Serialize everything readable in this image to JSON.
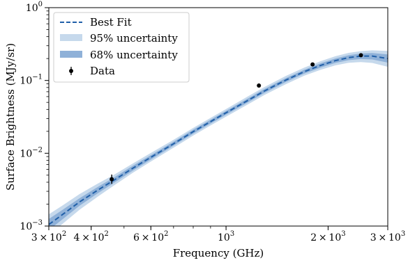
{
  "chart_data": {
    "type": "line",
    "xscale": "log",
    "yscale": "log",
    "xlim": [
      300,
      3000
    ],
    "ylim": [
      0.001,
      1
    ],
    "xlabel": "Frequency (GHz)",
    "ylabel": "Surface Brightness (MJy/sr)",
    "grid": false,
    "legend_position": "top-left",
    "x_ticks": [
      {
        "value": 300,
        "mantissa": "3",
        "times": "×",
        "base": "10",
        "exp": "2"
      },
      {
        "value": 400,
        "mantissa": "4",
        "times": "×",
        "base": "10",
        "exp": "2"
      },
      {
        "value": 600,
        "mantissa": "6",
        "times": "×",
        "base": "10",
        "exp": "2"
      },
      {
        "value": 1000,
        "mantissa": "",
        "times": "",
        "base": "10",
        "exp": "3"
      },
      {
        "value": 2000,
        "mantissa": "2",
        "times": "×",
        "base": "10",
        "exp": "3"
      },
      {
        "value": 3000,
        "mantissa": "3",
        "times": "×",
        "base": "10",
        "exp": "3"
      }
    ],
    "y_ticks": [
      {
        "value": 0.001,
        "base": "10",
        "exp": "−3"
      },
      {
        "value": 0.01,
        "base": "10",
        "exp": "−2"
      },
      {
        "value": 0.1,
        "base": "10",
        "exp": "−1"
      },
      {
        "value": 1,
        "base": "10",
        "exp": "0"
      }
    ],
    "best_fit": {
      "name": "Best Fit",
      "color": "#1f5fa8",
      "x": [
        300,
        330,
        370,
        420,
        470,
        530,
        600,
        700,
        800,
        900,
        1000,
        1150,
        1300,
        1500,
        1700,
        1900,
        2100,
        2300,
        2500,
        2700,
        3000
      ],
      "y": [
        0.00105,
        0.00145,
        0.00215,
        0.00315,
        0.00435,
        0.0062,
        0.0088,
        0.0135,
        0.0198,
        0.0272,
        0.036,
        0.052,
        0.072,
        0.101,
        0.132,
        0.161,
        0.187,
        0.206,
        0.216,
        0.216,
        0.2
      ]
    },
    "band_95": {
      "name": "95% uncertainty",
      "color": "#c6d9ec",
      "lower": [
        0.00074,
        0.00108,
        0.00168,
        0.00257,
        0.00368,
        0.00536,
        0.0077,
        0.0119,
        0.0175,
        0.0241,
        0.0318,
        0.0458,
        0.0634,
        0.0888,
        0.116,
        0.14,
        0.161,
        0.175,
        0.179,
        0.174,
        0.154
      ],
      "upper": [
        0.00145,
        0.00193,
        0.00276,
        0.00387,
        0.00515,
        0.0072,
        0.0101,
        0.0153,
        0.0223,
        0.0306,
        0.0405,
        0.059,
        0.0817,
        0.115,
        0.15,
        0.184,
        0.215,
        0.239,
        0.253,
        0.259,
        0.254
      ]
    },
    "band_68": {
      "name": "68% uncertainty",
      "color": "#8fb1d8",
      "lower": [
        0.00088,
        0.00125,
        0.00191,
        0.00285,
        0.004,
        0.00575,
        0.0082,
        0.0127,
        0.0186,
        0.0256,
        0.0339,
        0.0489,
        0.0677,
        0.0949,
        0.124,
        0.15,
        0.174,
        0.19,
        0.197,
        0.194,
        0.176
      ],
      "upper": [
        0.00125,
        0.00168,
        0.00242,
        0.00348,
        0.00473,
        0.0067,
        0.0094,
        0.0144,
        0.0211,
        0.0289,
        0.0382,
        0.0553,
        0.0766,
        0.1075,
        0.14,
        0.172,
        0.2,
        0.222,
        0.235,
        0.238,
        0.228
      ]
    },
    "data": {
      "name": "Data",
      "color": "#000000",
      "points": [
        {
          "x": 460,
          "y": 0.0044,
          "err_low": 0.0038,
          "err_high": 0.0051
        },
        {
          "x": 1250,
          "y": 0.085,
          "err_low": 0.08,
          "err_high": 0.091
        },
        {
          "x": 1800,
          "y": 0.166,
          "err_low": 0.16,
          "err_high": 0.173
        },
        {
          "x": 2500,
          "y": 0.222,
          "err_low": 0.215,
          "err_high": 0.229
        }
      ]
    }
  }
}
